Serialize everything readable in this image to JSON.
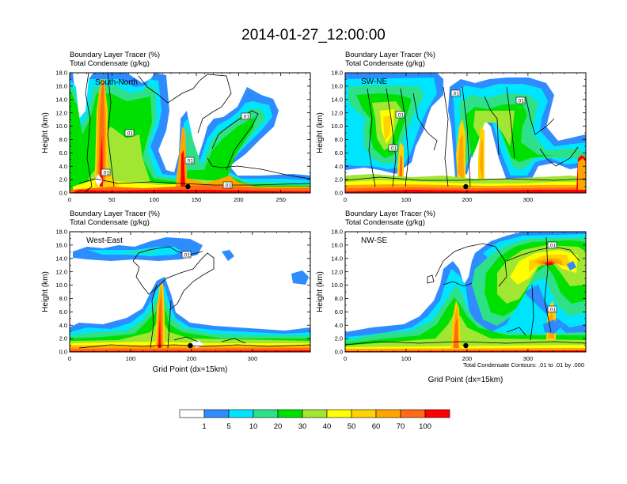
{
  "title": "2014-01-27_12:00:00",
  "shared_header": {
    "line1": "Boundary Layer Tracer   (%)",
    "line2": "Total Condensate   (g/kg)"
  },
  "ylabel": "Height (km)",
  "xlabel": "Grid Point (dx=15km)",
  "contour_note": "Total Condensate Contours: .01 to .01 by .000",
  "contour_label": ".01",
  "colors": {
    "levels": [
      "#ffffff",
      "#2f8cff",
      "#00e5ff",
      "#2ee08a",
      "#00e000",
      "#a0e632",
      "#ffff00",
      "#ffd200",
      "#ffa500",
      "#ff6a14",
      "#ff0000"
    ],
    "contour": "#000000",
    "marker": "#000000"
  },
  "colorbar": {
    "labels": [
      "1",
      "5",
      "10",
      "20",
      "30",
      "40",
      "50",
      "60",
      "70",
      "100"
    ]
  },
  "chart_data": [
    {
      "type": "heatmap",
      "panel_label": "South-North",
      "header_line1": "Boundary Layer Tracer   (%)",
      "header_line2": "Total Condensate   (g/kg)",
      "xlim": [
        0,
        285
      ],
      "ylim": [
        0,
        18
      ],
      "xticks": [
        "0",
        "50",
        "100",
        "150",
        "200",
        "250"
      ],
      "yticks": [
        "0.0",
        "2.0",
        "4.0",
        "6.0",
        "8.0",
        "10.0",
        "12.0",
        "14.0",
        "16.0",
        "18.0"
      ],
      "marker_x": 140
    },
    {
      "type": "heatmap",
      "panel_label": "SW-NE",
      "header_line1": "Boundary Layer Tracer   (%)",
      "header_line2": "Total Condensate   (g/kg)",
      "xlim": [
        0,
        395
      ],
      "ylim": [
        0,
        18
      ],
      "xticks": [
        "0",
        "100",
        "200",
        "300"
      ],
      "yticks": [
        "0.0",
        "2.0",
        "4.0",
        "6.0",
        "8.0",
        "10.0",
        "12.0",
        "14.0",
        "16.0",
        "18.0"
      ],
      "marker_x": 198
    },
    {
      "type": "heatmap",
      "panel_label": "West-East",
      "header_line1": "Boundary Layer Tracer   (%)",
      "header_line2": "Total Condensate   (g/kg)",
      "xlim": [
        0,
        395
      ],
      "ylim": [
        0,
        18
      ],
      "xticks": [
        "0",
        "100",
        "200",
        "300"
      ],
      "yticks": [
        "0.0",
        "2.0",
        "4.0",
        "6.0",
        "8.0",
        "10.0",
        "12.0",
        "14.0",
        "16.0",
        "18.0"
      ],
      "marker_x": 198
    },
    {
      "type": "heatmap",
      "panel_label": "NW-SE",
      "header_line1": "Boundary Layer Tracer   (%)",
      "header_line2": "Total Condensate   (g/kg)",
      "xlim": [
        0,
        395
      ],
      "ylim": [
        0,
        18
      ],
      "xticks": [
        "0",
        "100",
        "200",
        "300"
      ],
      "yticks": [
        "0.0",
        "2.0",
        "4.0",
        "6.0",
        "8.0",
        "10.0",
        "12.0",
        "14.0",
        "16.0",
        "18.0"
      ],
      "marker_x": 198
    }
  ]
}
